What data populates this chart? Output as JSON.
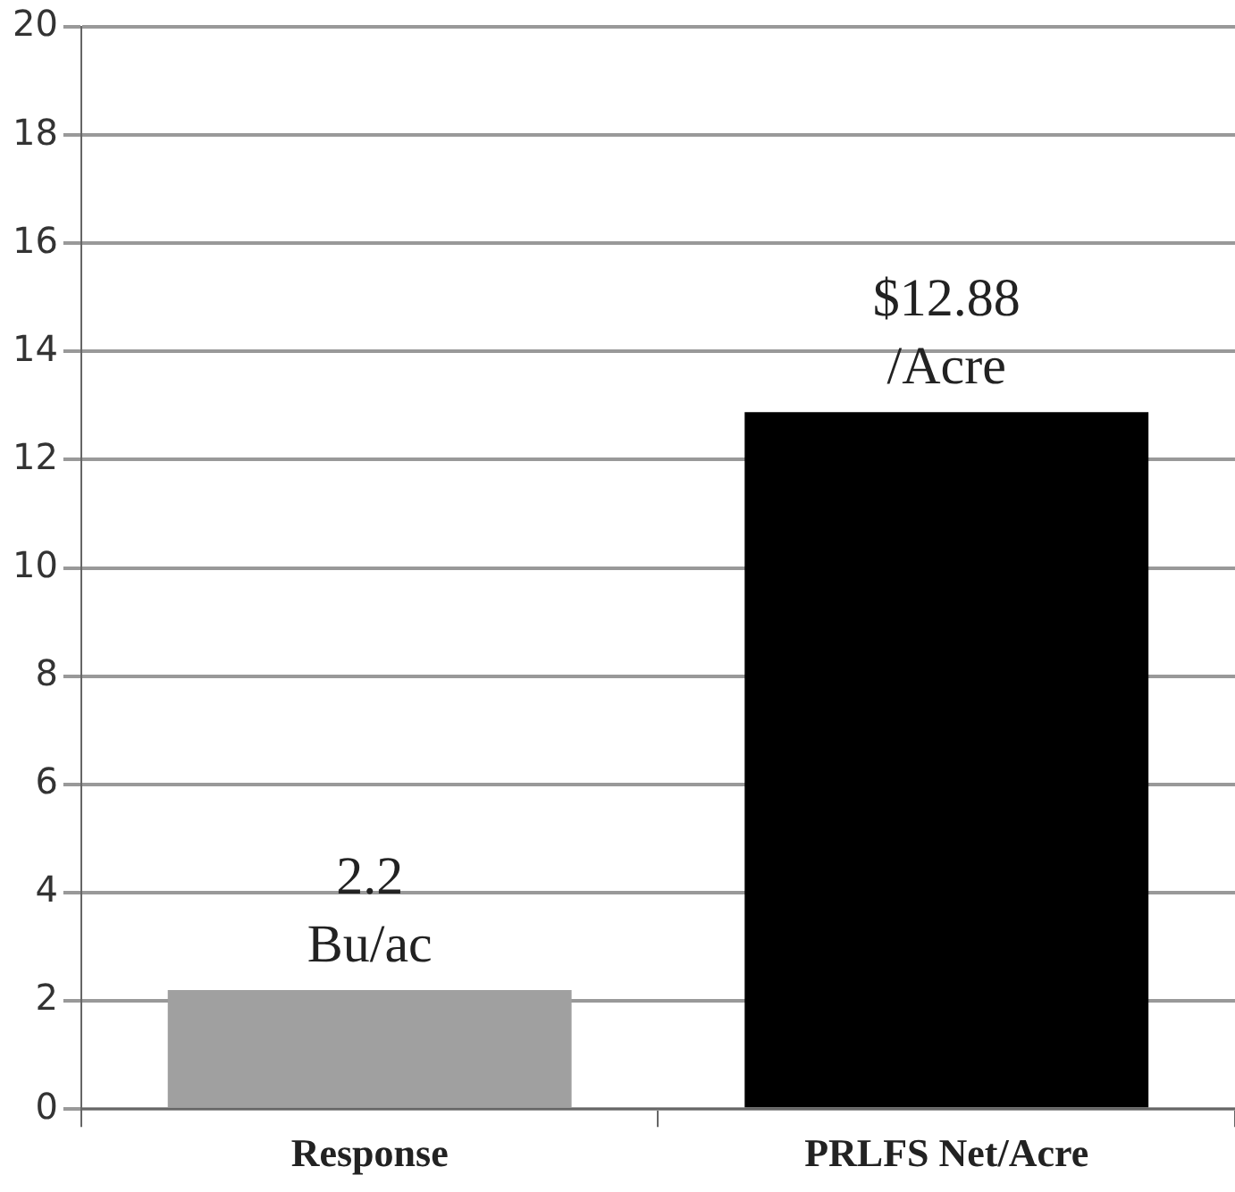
{
  "chart_data": {
    "type": "bar",
    "categories": [
      "Response",
      "PRLFS Net/Acre"
    ],
    "values": [
      2.2,
      12.88
    ],
    "colors": [
      "#a0a0a0",
      "#000000"
    ],
    "value_labels": [
      "2.2\nBu/ac",
      "$12.88\n/Acre"
    ],
    "ylim": [
      0,
      20
    ],
    "yticks": [
      0,
      2,
      4,
      6,
      8,
      10,
      12,
      14,
      16,
      18,
      20
    ],
    "grid": "y",
    "legend": false
  }
}
